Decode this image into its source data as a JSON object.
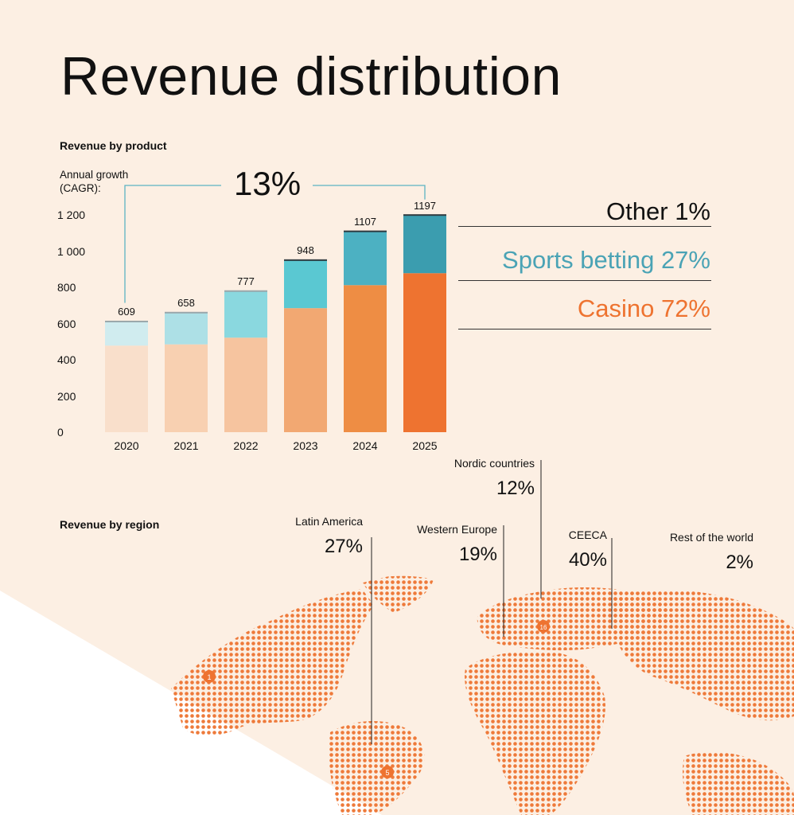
{
  "page": {
    "title": "Revenue distribution",
    "product_heading": "Revenue by product",
    "region_heading": "Revenue by region",
    "axis_caption_line1": "Annual growth",
    "axis_caption_line2": "(CAGR):",
    "cagr_value": "13%"
  },
  "chart_data": [
    {
      "type": "bar",
      "stacked": true,
      "title": "Revenue by product",
      "categories": [
        "2020",
        "2021",
        "2022",
        "2023",
        "2024",
        "2025"
      ],
      "totals": [
        609,
        658,
        777,
        948,
        1107,
        1197
      ],
      "total_labels": [
        "609",
        "658",
        "777",
        "948",
        "1107",
        "1197"
      ],
      "series": [
        {
          "name": "Casino",
          "values": [
            478,
            485,
            522,
            685,
            812,
            878
          ]
        },
        {
          "name": "Sports betting",
          "values": [
            131,
            173,
            255,
            263,
            295,
            319
          ]
        },
        {
          "name": "Other",
          "values": [
            0,
            0,
            0,
            0,
            0,
            0
          ]
        }
      ],
      "ylim": [
        0,
        1200
      ],
      "yticks": [
        "0",
        "200",
        "400",
        "600",
        "800",
        "1 000",
        "1 200"
      ],
      "ytick_values": [
        0,
        200,
        400,
        600,
        800,
        1000,
        1200
      ],
      "legend": [
        {
          "label": "Other 1%",
          "color": "#111111"
        },
        {
          "label": "Sports betting 27%",
          "color": "#4aa3b5"
        },
        {
          "label": "Casino 72%",
          "color": "#ee7330"
        }
      ],
      "casino_colors": [
        "#f9dfcb",
        "#f8d0b1",
        "#f6c49f",
        "#f2a872",
        "#ee8d44",
        "#ee7330"
      ],
      "sports_colors": [
        "#d0ecef",
        "#ade0e6",
        "#8ad8df",
        "#5ac8d2",
        "#4cb1c2",
        "#3b9daf"
      ],
      "cagr": "13%"
    },
    {
      "type": "table",
      "title": "Revenue by region",
      "regions": [
        {
          "name": "Latin America",
          "share": "27%"
        },
        {
          "name": "Western Europe",
          "share": "19%"
        },
        {
          "name": "Nordic countries",
          "share": "12%"
        },
        {
          "name": "CEECA",
          "share": "40%"
        },
        {
          "name": "Rest of the world",
          "share": "2%"
        }
      ],
      "map_markers": [
        "1",
        "5",
        "16"
      ]
    }
  ],
  "colors": {
    "background": "#fcefe3",
    "map_dots": "#ee7a3a",
    "cagr_bracket": "#5bb3c3"
  }
}
